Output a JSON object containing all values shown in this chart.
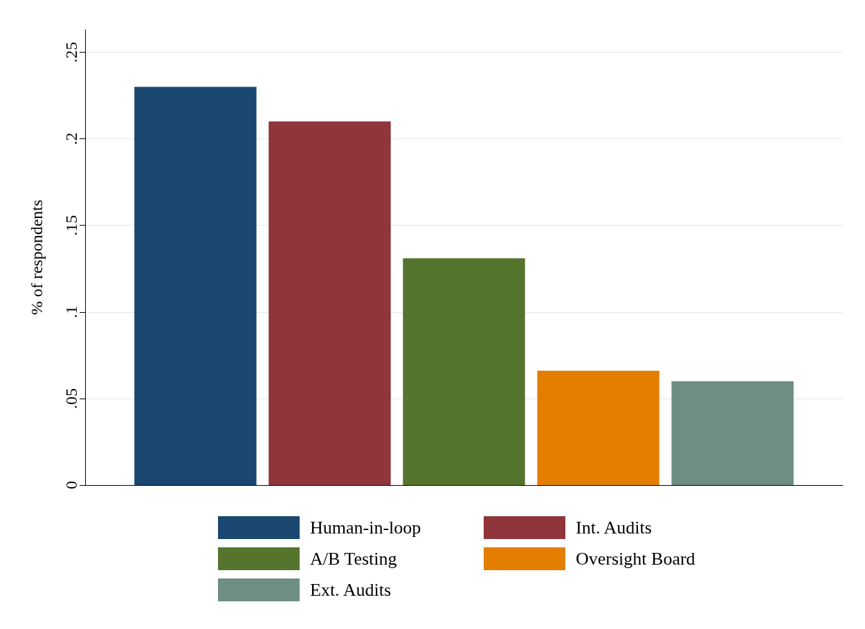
{
  "chart_data": {
    "type": "bar",
    "ylabel": "% of respondents",
    "categories": [
      null
    ],
    "series": [
      {
        "name": "Human-in-loop",
        "color": "#1a476f",
        "values": [
          0.23
        ]
      },
      {
        "name": "Int. Audits",
        "color": "#90353b",
        "values": [
          0.21
        ]
      },
      {
        "name": "A/B Testing",
        "color": "#55752f",
        "values": [
          0.131
        ]
      },
      {
        "name": "Oversight Board",
        "color": "#e37e00",
        "values": [
          0.066
        ]
      },
      {
        "name": "Ext. Audits",
        "color": "#6e8e84",
        "values": [
          0.06
        ]
      }
    ],
    "ylim": [
      0,
      0.263
    ],
    "yticks": [
      0,
      {
        "value": 0.05,
        "label": ".05"
      },
      {
        "value": 0.1,
        "label": ".1"
      },
      {
        "value": 0.15,
        "label": ".15"
      },
      {
        "value": 0.2,
        "label": ".2"
      },
      {
        "value": 0.25,
        "label": ".25"
      }
    ],
    "grid": "y",
    "legend": "bottom"
  }
}
